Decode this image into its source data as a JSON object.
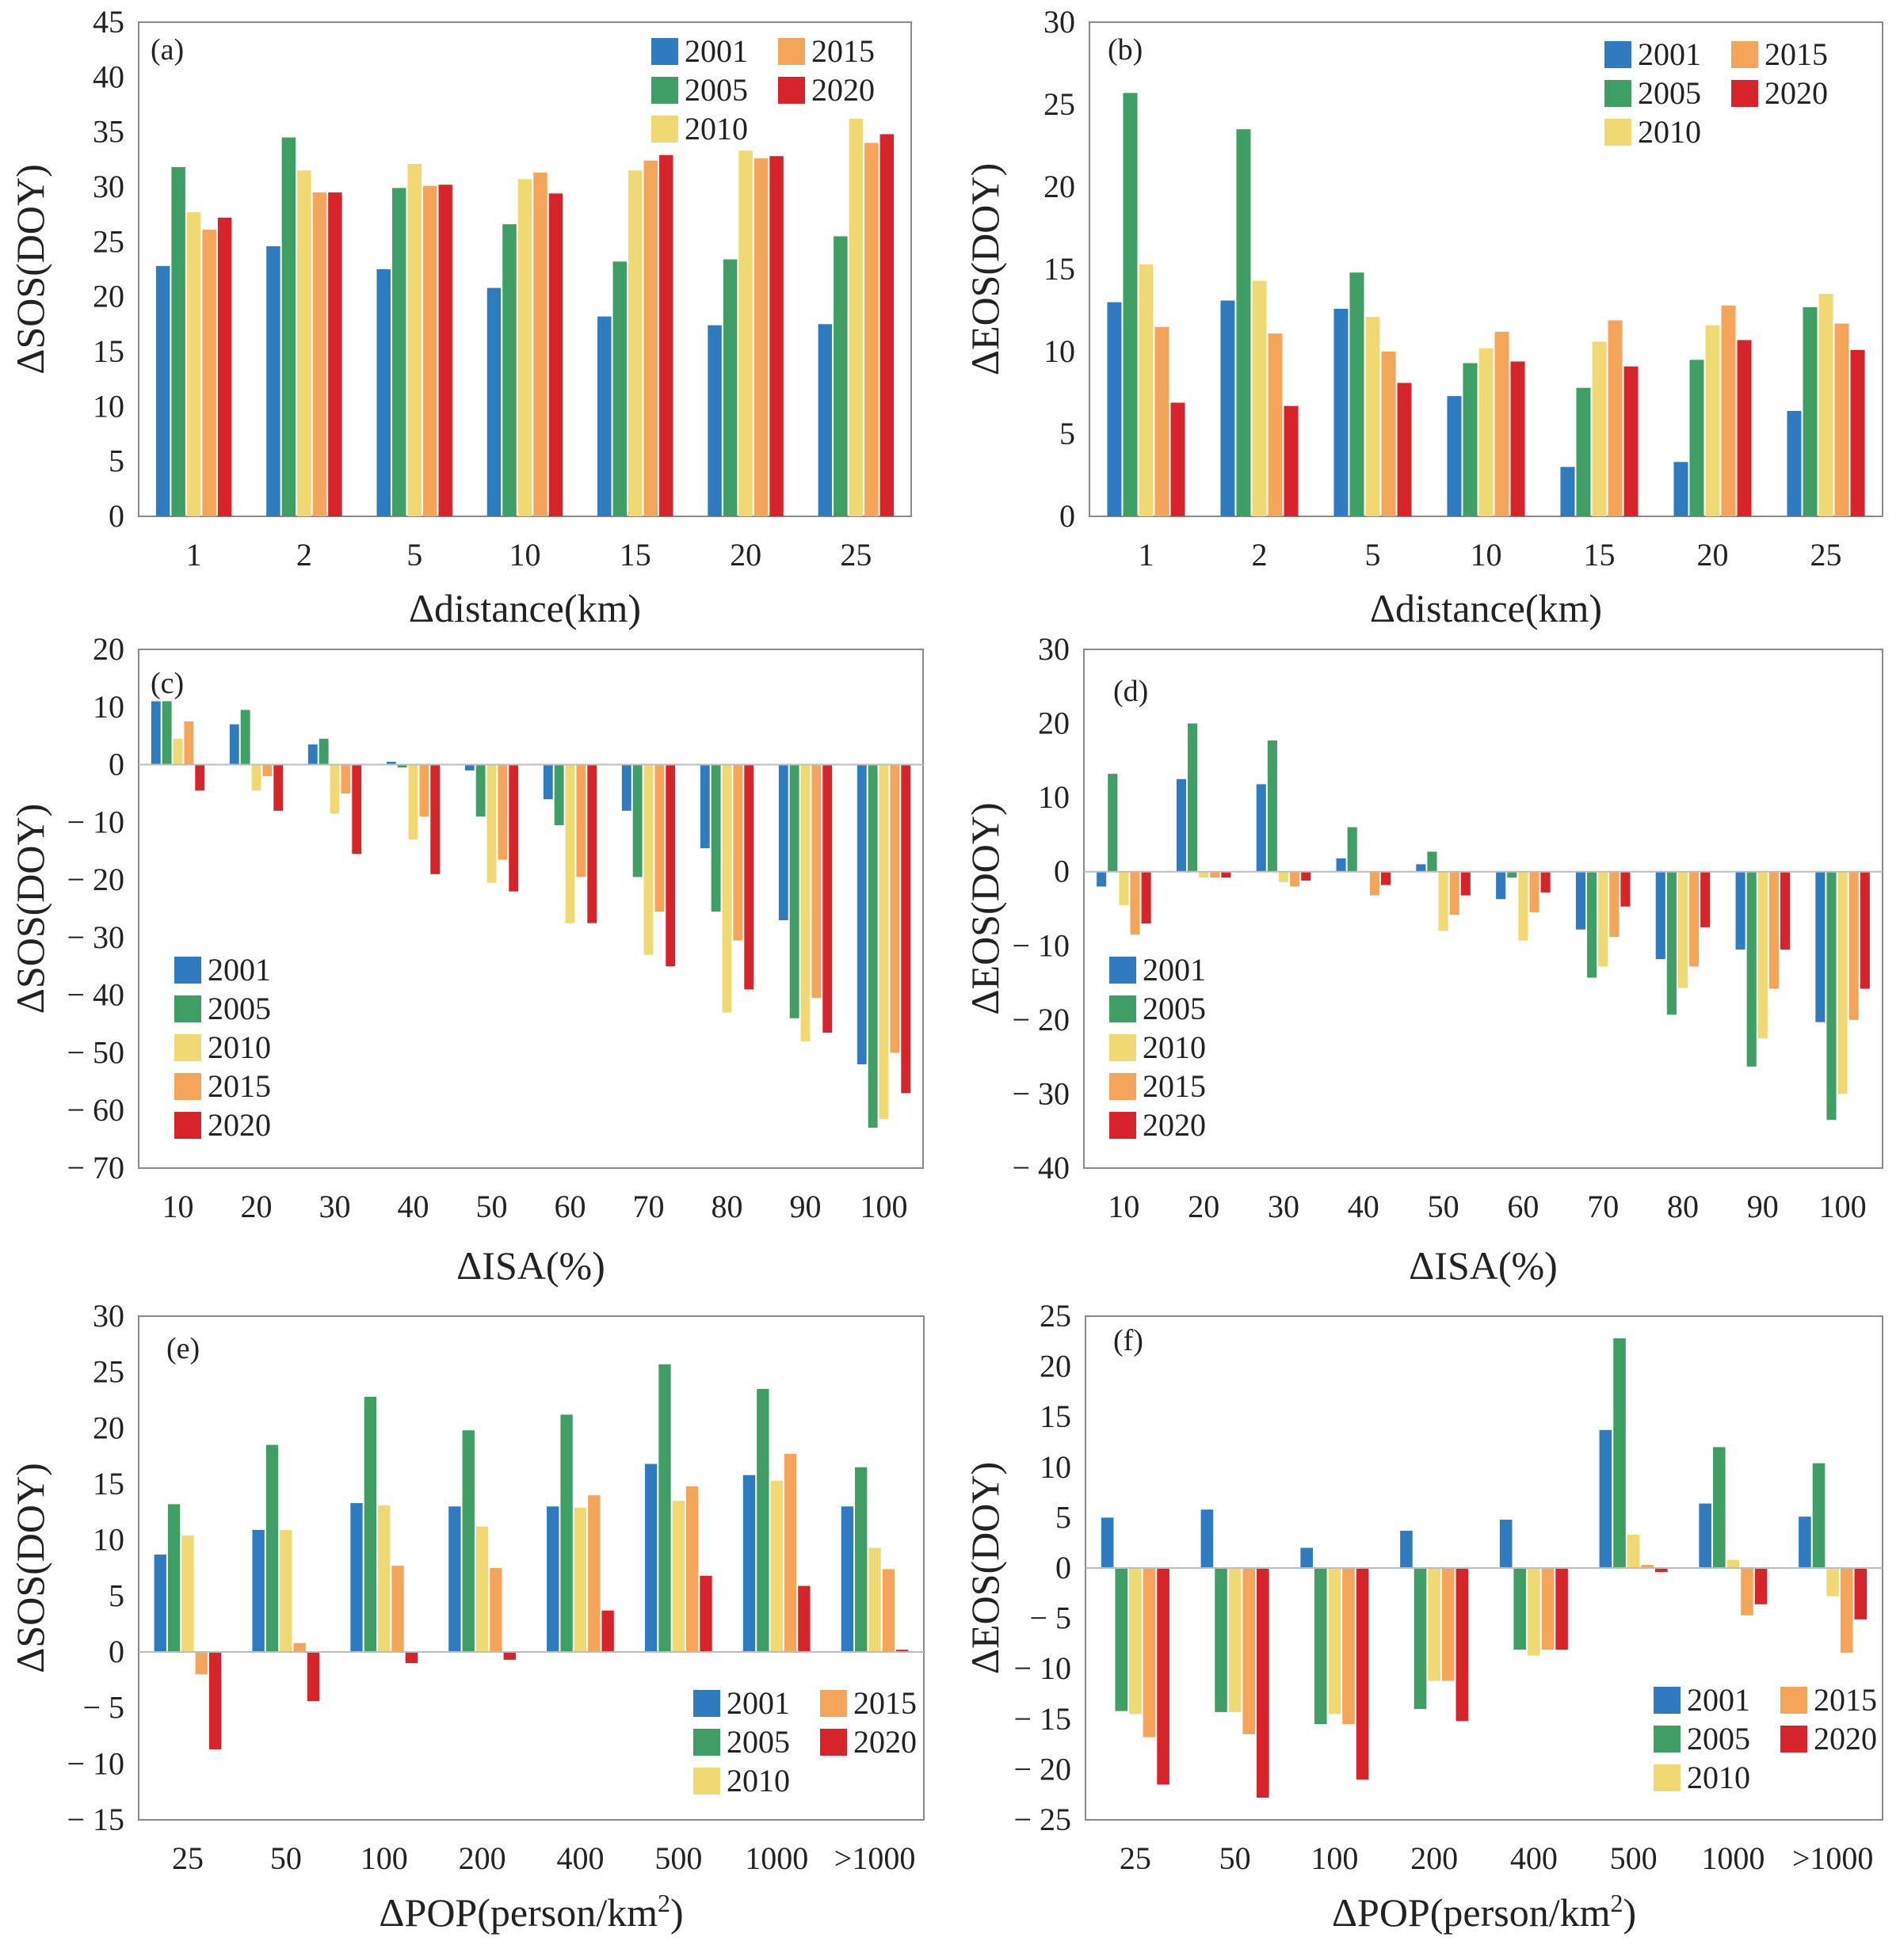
{
  "series_colors": {
    "2001": "#2f7bbf",
    "2005": "#3e9e63",
    "2010": "#f0d872",
    "2015": "#f5a55a",
    "2020": "#d7242a"
  },
  "chart_data": [
    {
      "panel": "(a)",
      "type": "bar",
      "xlabel": "Δdistance(km)",
      "ylabel": "ΔSOS(DOY)",
      "ylim": [
        0,
        45
      ],
      "yticks": [
        0,
        5,
        10,
        15,
        20,
        25,
        30,
        35,
        40,
        45
      ],
      "ytick_labels": [
        "0",
        "5",
        "10",
        "15",
        "20",
        "25",
        "30",
        "35",
        "40",
        "45"
      ],
      "categories": [
        "1",
        "2",
        "5",
        "10",
        "15",
        "20",
        "25"
      ],
      "legend": {
        "placement": "top-right",
        "columns": 2,
        "rows": 3
      },
      "series": [
        {
          "name": "2001",
          "values": [
            22.8,
            24.6,
            22.5,
            20.8,
            18.2,
            17.4,
            17.5
          ]
        },
        {
          "name": "2005",
          "values": [
            31.8,
            34.5,
            29.9,
            26.6,
            23.2,
            23.4,
            25.5
          ]
        },
        {
          "name": "2010",
          "values": [
            27.7,
            31.5,
            32.1,
            30.7,
            31.5,
            33.3,
            36.2
          ]
        },
        {
          "name": "2015",
          "values": [
            26.1,
            29.5,
            30.1,
            31.3,
            32.4,
            32.6,
            34.0
          ]
        },
        {
          "name": "2020",
          "values": [
            27.2,
            29.5,
            30.2,
            29.4,
            32.9,
            32.8,
            34.8
          ]
        }
      ]
    },
    {
      "panel": "(b)",
      "type": "bar",
      "xlabel": "Δdistance(km)",
      "ylabel": "ΔEOS(DOY)",
      "ylim": [
        0,
        30
      ],
      "yticks": [
        0,
        5,
        10,
        15,
        20,
        25,
        30
      ],
      "ytick_labels": [
        "0",
        "5",
        "10",
        "15",
        "20",
        "25",
        "30"
      ],
      "categories": [
        "1",
        "2",
        "5",
        "10",
        "15",
        "20",
        "25"
      ],
      "legend": {
        "placement": "top-right",
        "columns": 2,
        "rows": 3
      },
      "series": [
        {
          "name": "2001",
          "values": [
            13.0,
            13.1,
            12.6,
            7.3,
            3.0,
            3.3,
            6.4
          ]
        },
        {
          "name": "2005",
          "values": [
            25.7,
            23.5,
            14.8,
            9.3,
            7.8,
            9.5,
            12.7
          ]
        },
        {
          "name": "2010",
          "values": [
            15.3,
            14.3,
            12.1,
            10.2,
            10.6,
            11.6,
            13.5
          ]
        },
        {
          "name": "2015",
          "values": [
            11.5,
            11.1,
            10.0,
            11.2,
            11.9,
            12.8,
            11.7
          ]
        },
        {
          "name": "2020",
          "values": [
            6.9,
            6.7,
            8.1,
            9.4,
            9.1,
            10.7,
            10.1
          ]
        }
      ]
    },
    {
      "panel": "(c)",
      "type": "bar",
      "xlabel": "ΔISA(%)",
      "ylabel": "ΔSOS(DOY)",
      "ylim": [
        -70,
        20
      ],
      "yticks": [
        -70,
        -60,
        -50,
        -40,
        -30,
        -20,
        -10,
        0,
        10,
        20
      ],
      "ytick_labels": [
        "− 70",
        "− 60",
        "− 50",
        "− 40",
        "− 30",
        "− 20",
        "− 10",
        "0",
        "10",
        "20"
      ],
      "categories": [
        "10",
        "20",
        "30",
        "40",
        "50",
        "60",
        "70",
        "80",
        "90",
        "100"
      ],
      "legend": {
        "placement": "bottom-left",
        "columns": 1,
        "rows": 5
      },
      "series": [
        {
          "name": "2001",
          "values": [
            11.0,
            7.0,
            3.5,
            0.5,
            -1.0,
            -6.0,
            -8.0,
            -14.5,
            -27.0,
            -52.0
          ]
        },
        {
          "name": "2005",
          "values": [
            11.0,
            9.5,
            4.5,
            -0.5,
            -9.0,
            -10.5,
            -19.5,
            -25.5,
            -44.0,
            -63.0
          ]
        },
        {
          "name": "2010",
          "values": [
            4.5,
            -4.5,
            -8.5,
            -13.0,
            -20.5,
            -27.5,
            -33.0,
            -43.0,
            -48.0,
            -61.5
          ]
        },
        {
          "name": "2015",
          "values": [
            7.5,
            -2.0,
            -5.0,
            -9.0,
            -16.5,
            -19.5,
            -25.5,
            -30.5,
            -40.5,
            -50.0
          ]
        },
        {
          "name": "2020",
          "values": [
            -4.5,
            -8.0,
            -15.5,
            -19.0,
            -22.0,
            -27.5,
            -35.0,
            -39.0,
            -46.5,
            -57.0
          ]
        }
      ]
    },
    {
      "panel": "(d)",
      "type": "bar",
      "xlabel": "ΔISA(%)",
      "ylabel": "ΔEOS(DOY)",
      "ylim": [
        -40,
        30
      ],
      "yticks": [
        -40,
        -30,
        -20,
        -10,
        0,
        10,
        20,
        30
      ],
      "ytick_labels": [
        "− 40",
        "− 30",
        "− 20",
        "− 10",
        "0",
        "10",
        "20",
        "30"
      ],
      "categories": [
        "10",
        "20",
        "30",
        "40",
        "50",
        "60",
        "70",
        "80",
        "90",
        "100"
      ],
      "legend": {
        "placement": "bottom-left",
        "columns": 1,
        "rows": 5
      },
      "series": [
        {
          "name": "2001",
          "values": [
            -2.0,
            12.5,
            11.8,
            1.8,
            1.0,
            -3.7,
            -7.8,
            -11.8,
            -10.5,
            -20.3
          ]
        },
        {
          "name": "2005",
          "values": [
            13.2,
            20.0,
            17.7,
            6.0,
            2.7,
            -0.8,
            -14.3,
            -19.3,
            -26.3,
            -33.5
          ]
        },
        {
          "name": "2010",
          "values": [
            -4.5,
            -0.8,
            -1.4,
            0.0,
            -8.0,
            -9.3,
            -12.8,
            -15.7,
            -22.5,
            -30.0
          ]
        },
        {
          "name": "2015",
          "values": [
            -8.5,
            -0.8,
            -2.0,
            -3.2,
            -5.8,
            -5.5,
            -8.8,
            -12.8,
            -15.8,
            -20.0
          ]
        },
        {
          "name": "2020",
          "values": [
            -7.0,
            -0.8,
            -1.2,
            -1.8,
            -3.2,
            -2.8,
            -4.7,
            -7.5,
            -10.5,
            -15.8
          ]
        }
      ]
    },
    {
      "panel": "(e)",
      "type": "bar",
      "xlabel": "ΔPOP(person/km",
      "xlabel_sup": "2",
      "xlabel_end": ")",
      "ylabel": "ΔSOS(DOY)",
      "ylim": [
        -15,
        30
      ],
      "yticks": [
        -15,
        -10,
        -5,
        0,
        5,
        10,
        15,
        20,
        25,
        30
      ],
      "ytick_labels": [
        "− 15",
        "− 10",
        "− 5",
        "0",
        "5",
        "10",
        "15",
        "20",
        "25",
        "30"
      ],
      "categories": [
        "25",
        "50",
        "100",
        "200",
        "400",
        "500",
        "1000",
        ">1000"
      ],
      "legend": {
        "placement": "bottom-right",
        "columns": 2,
        "rows": 3
      },
      "series": [
        {
          "name": "2001",
          "values": [
            8.7,
            10.9,
            13.3,
            13.0,
            13.0,
            16.8,
            15.8,
            13.0
          ]
        },
        {
          "name": "2005",
          "values": [
            13.2,
            18.5,
            22.8,
            19.8,
            21.2,
            25.7,
            23.5,
            16.5
          ]
        },
        {
          "name": "2010",
          "values": [
            10.4,
            10.9,
            13.1,
            11.2,
            12.9,
            13.5,
            15.3,
            9.3
          ]
        },
        {
          "name": "2015",
          "values": [
            -2.0,
            0.8,
            7.7,
            7.5,
            14.0,
            14.8,
            17.7,
            7.4
          ]
        },
        {
          "name": "2020",
          "values": [
            -8.7,
            -4.4,
            -1.0,
            -0.7,
            3.7,
            6.8,
            5.9,
            0.2
          ]
        }
      ]
    },
    {
      "panel": "(f)",
      "type": "bar",
      "xlabel": "ΔPOP(person/km",
      "xlabel_sup": "2",
      "xlabel_end": ")",
      "ylabel": "ΔEOS(DOY)",
      "ylim": [
        -25,
        25
      ],
      "yticks": [
        -25,
        -20,
        -15,
        -10,
        -5,
        0,
        5,
        10,
        15,
        20,
        25
      ],
      "ytick_labels": [
        "− 25",
        "− 20",
        "− 15",
        "− 10",
        "− 5",
        "0",
        "5",
        "10",
        "15",
        "20",
        "25"
      ],
      "categories": [
        "25",
        "50",
        "100",
        "200",
        "400",
        "500",
        "1000",
        ">1000"
      ],
      "legend": {
        "placement": "bottom-right",
        "columns": 2,
        "rows": 3
      },
      "series": [
        {
          "name": "2001",
          "values": [
            5.0,
            5.8,
            2.0,
            3.7,
            4.8,
            13.7,
            6.4,
            5.1
          ]
        },
        {
          "name": "2005",
          "values": [
            -14.2,
            -14.3,
            -15.5,
            -14.0,
            -8.1,
            22.8,
            12.0,
            10.4
          ]
        },
        {
          "name": "2010",
          "values": [
            -14.5,
            -14.3,
            -14.5,
            -11.2,
            -8.7,
            3.3,
            0.8,
            -2.8
          ]
        },
        {
          "name": "2015",
          "values": [
            -16.8,
            -16.5,
            -15.5,
            -11.2,
            -8.1,
            0.3,
            -4.7,
            -8.4
          ]
        },
        {
          "name": "2020",
          "values": [
            -21.5,
            -22.8,
            -21.0,
            -15.2,
            -8.1,
            -0.4,
            -3.6,
            -5.1
          ]
        }
      ]
    }
  ]
}
